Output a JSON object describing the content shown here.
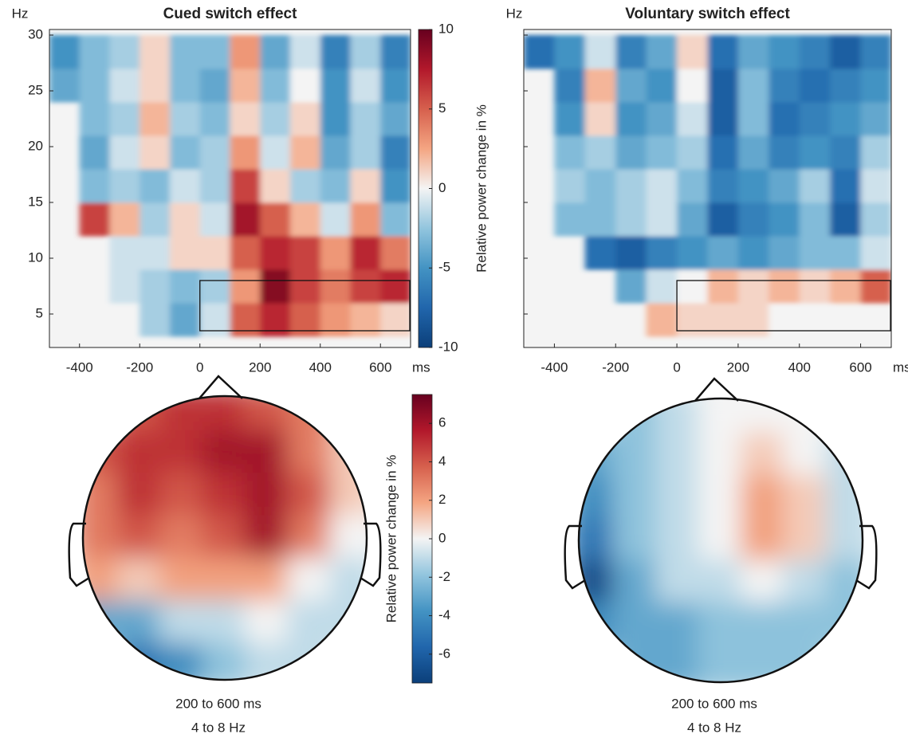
{
  "colormap": [
    "#0b3f7a",
    "#2166ac",
    "#4393c3",
    "#92c5de",
    "#f4f4f4",
    "#f4a582",
    "#d6604d",
    "#b2182b",
    "#67001f"
  ],
  "chart_data": [
    {
      "type": "heatmap",
      "title": "Cued switch effect",
      "x_unit": "ms",
      "y_unit": "Hz",
      "xlim": [
        -500,
        700
      ],
      "ylim": [
        2,
        30.5
      ],
      "xticks": [
        -400,
        -200,
        0,
        200,
        400,
        600
      ],
      "yticks": [
        5,
        10,
        15,
        20,
        25,
        30
      ],
      "show_ytick_labels": true,
      "x": [
        -450,
        -350,
        -250,
        -150,
        -50,
        50,
        150,
        250,
        350,
        450,
        550,
        650
      ],
      "y": [
        4.5,
        7.5,
        10.5,
        13.5,
        16.5,
        19.5,
        22.5,
        25.5,
        28.5
      ],
      "z": [
        [
          null,
          null,
          null,
          -2,
          -4,
          -1,
          5,
          7,
          5,
          3,
          2,
          1
        ],
        [
          null,
          null,
          -1,
          -2,
          -3,
          -2,
          3,
          9,
          6,
          4,
          6,
          7
        ],
        [
          null,
          null,
          -1,
          -1,
          1,
          1,
          5,
          7,
          6,
          3,
          7,
          4
        ],
        [
          null,
          6,
          2,
          -2,
          1,
          -1,
          8,
          5,
          2,
          -1,
          3,
          -3
        ],
        [
          null,
          -3,
          -2,
          -3,
          -1,
          -2,
          6,
          1,
          -2,
          -3,
          1,
          -5
        ],
        [
          null,
          -4,
          -1,
          1,
          -3,
          -2,
          3,
          -1,
          2,
          -4,
          -2,
          -6
        ],
        [
          null,
          -3,
          -2,
          2,
          -2,
          -3,
          1,
          -2,
          1,
          -5,
          -2,
          -4
        ],
        [
          -4,
          -3,
          -1,
          1,
          -3,
          -4,
          2,
          -3,
          0,
          -5,
          -1,
          -5
        ],
        [
          -5,
          -3,
          -2,
          1,
          -3,
          -3,
          3,
          -4,
          -1,
          -6,
          -2,
          -6
        ]
      ],
      "clim": [
        -10,
        10
      ],
      "highlight": {
        "x": [
          0,
          700
        ],
        "y": [
          3.5,
          8
        ]
      },
      "colorbar": {
        "label": "Relative power change in %",
        "lim": [
          -10,
          10
        ],
        "ticks": [
          -10,
          -5,
          0,
          5,
          10
        ]
      }
    },
    {
      "type": "heatmap",
      "title": "Voluntary switch effect",
      "x_unit": "ms",
      "y_unit": "Hz",
      "xlim": [
        -500,
        700
      ],
      "ylim": [
        2,
        30.5
      ],
      "xticks": [
        -400,
        -200,
        0,
        200,
        400,
        600
      ],
      "yticks": [
        5,
        10,
        15,
        20,
        25,
        30
      ],
      "show_ytick_labels": false,
      "x": [
        -450,
        -350,
        -250,
        -150,
        -50,
        50,
        150,
        250,
        350,
        450,
        550,
        650
      ],
      "y": [
        4.5,
        7.5,
        10.5,
        13.5,
        16.5,
        19.5,
        22.5,
        25.5,
        28.5
      ],
      "z": [
        [
          null,
          null,
          null,
          null,
          2,
          1,
          1,
          1,
          0,
          0,
          null,
          null
        ],
        [
          null,
          null,
          null,
          -4,
          -1,
          0,
          2,
          1,
          2,
          1,
          2,
          5
        ],
        [
          null,
          null,
          -7,
          -8,
          -6,
          -5,
          -4,
          -5,
          -4,
          -3,
          -3,
          -1
        ],
        [
          null,
          -3,
          -3,
          -2,
          -1,
          -4,
          -8,
          -6,
          -5,
          -3,
          -8,
          -2
        ],
        [
          null,
          -2,
          -3,
          -2,
          -1,
          -3,
          -6,
          -5,
          -4,
          -2,
          -7,
          -1
        ],
        [
          null,
          -3,
          -2,
          -4,
          -3,
          -2,
          -7,
          -4,
          -6,
          -5,
          -6,
          -2
        ],
        [
          null,
          -5,
          1,
          -5,
          -4,
          -1,
          -8,
          -3,
          -7,
          -6,
          -5,
          -4
        ],
        [
          null,
          -6,
          2,
          -4,
          -5,
          0,
          -8,
          -3,
          -6,
          -7,
          -6,
          -5
        ],
        [
          -7,
          -5,
          -1,
          -6,
          -4,
          1,
          -7,
          -4,
          -5,
          -6,
          -8,
          -6
        ]
      ],
      "clim": [
        -10,
        10
      ],
      "highlight": {
        "x": [
          0,
          700
        ],
        "y": [
          3.5,
          8
        ]
      }
    },
    {
      "type": "topoplot",
      "caption": [
        "200 to 600 ms",
        "4 to 8 Hz"
      ],
      "x": [
        -0.9,
        -0.6,
        -0.3,
        0,
        0.3,
        0.6,
        0.9
      ],
      "y": [
        0.9,
        0.6,
        0.3,
        0,
        -0.3,
        -0.6,
        -0.9
      ],
      "z": [
        [
          null,
          4,
          5,
          5,
          4,
          3,
          null
        ],
        [
          4,
          5,
          5,
          6,
          6,
          3,
          1
        ],
        [
          3,
          5,
          4,
          5,
          6,
          4,
          1
        ],
        [
          3,
          4,
          3,
          4,
          6,
          3,
          0
        ],
        [
          2,
          1,
          2,
          2,
          2,
          0,
          -1
        ],
        [
          -3,
          -3,
          -1,
          -1,
          0,
          -1,
          -1
        ],
        [
          null,
          -5,
          -4,
          -2,
          -1,
          -1,
          null
        ]
      ],
      "clim": [
        -7.5,
        7.5
      ],
      "colorbar": {
        "label": "Relative power change in %",
        "lim": [
          -7.5,
          7.5
        ],
        "ticks": [
          -6,
          -4,
          -2,
          0,
          2,
          4,
          6
        ]
      }
    },
    {
      "type": "topoplot",
      "caption": [
        "200 to 600 ms",
        "4 to 8 Hz"
      ],
      "x": [
        -0.9,
        -0.6,
        -0.3,
        0,
        0.3,
        0.6,
        0.9
      ],
      "y": [
        0.9,
        0.6,
        0.3,
        0,
        -0.3,
        -0.6,
        -0.9
      ],
      "z": [
        [
          null,
          -2,
          -1,
          0,
          0,
          0,
          null
        ],
        [
          -3,
          -2,
          -1,
          0,
          1,
          0,
          -1
        ],
        [
          -4,
          -2,
          -1,
          0,
          2,
          1,
          -1
        ],
        [
          -5,
          -2,
          -1,
          0,
          2,
          1,
          -1
        ],
        [
          -7,
          -3,
          -1,
          -1,
          0,
          -1,
          -2
        ],
        [
          -4,
          -3,
          -3,
          -2,
          -2,
          -2,
          -2
        ],
        [
          null,
          -3,
          -3,
          -2,
          -2,
          -2,
          null
        ]
      ],
      "clim": [
        -7.5,
        7.5
      ]
    }
  ]
}
